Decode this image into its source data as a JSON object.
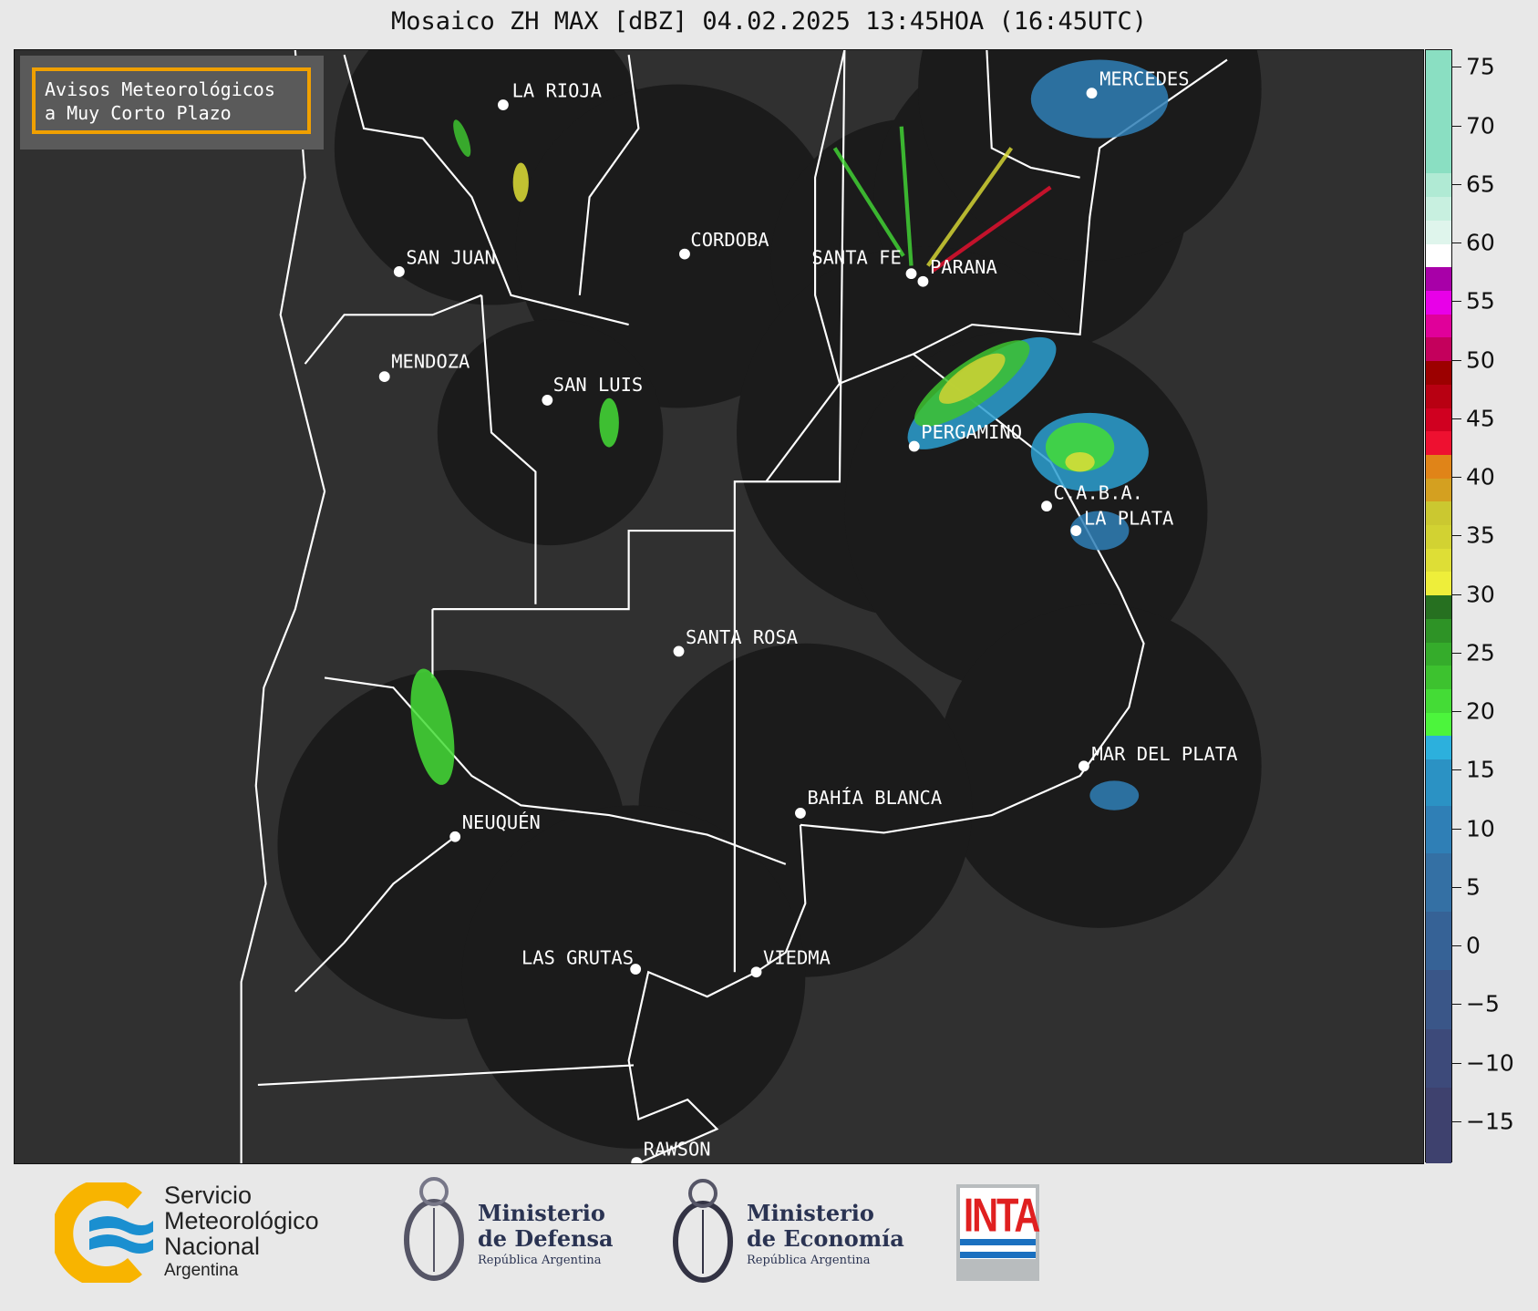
{
  "title": "Mosaico ZH MAX [dBZ] 04.02.2025 13:45HOA (16:45UTC)",
  "legend_box": {
    "line1": "Avisos Meteorológicos",
    "line2": "a Muy Corto Plazo",
    "border_color": "#f0a000"
  },
  "cities": [
    "LA RIOJA",
    "SAN JUAN",
    "CORDOBA",
    "SANTA FE",
    "PARANA",
    "MENDOZA",
    "SAN LUIS",
    "PERGAMINO",
    "MERCEDES",
    "C.A.B.A.",
    "LA PLATA",
    "SANTA ROSA",
    "MAR DEL PLATA",
    "BAHÍA BLANCA",
    "NEUQUÉN",
    "LAS GRUTAS",
    "VIEDMA",
    "RAWSON"
  ],
  "colorbar": {
    "unit": "dBZ",
    "range": [
      -18.5,
      76.5
    ],
    "ticks": [
      "75",
      "70",
      "65",
      "60",
      "55",
      "50",
      "45",
      "40",
      "35",
      "30",
      "25",
      "20",
      "15",
      "10",
      "5",
      "0",
      "−5",
      "−10",
      "−15"
    ],
    "tick_values": [
      75,
      70,
      65,
      60,
      55,
      50,
      45,
      40,
      35,
      30,
      25,
      20,
      15,
      10,
      5,
      0,
      -5,
      -10,
      -15
    ],
    "bands": [
      [
        -18.5,
        -12,
        "#3e416e"
      ],
      [
        -12,
        -7,
        "#3d4a7a"
      ],
      [
        -7,
        -2,
        "#3a5688"
      ],
      [
        -2,
        3,
        "#366296"
      ],
      [
        3,
        8,
        "#3470a4"
      ],
      [
        8,
        12,
        "#2f7fb6"
      ],
      [
        12,
        16,
        "#2b92c4"
      ],
      [
        16,
        18,
        "#2cb0dd"
      ],
      [
        18,
        20,
        "#4cf53c"
      ],
      [
        20,
        22,
        "#44dc36"
      ],
      [
        22,
        24,
        "#3dc22f"
      ],
      [
        24,
        26,
        "#35ac2b"
      ],
      [
        26,
        28,
        "#2e9326"
      ],
      [
        28,
        30,
        "#267020"
      ],
      [
        30,
        32,
        "#eeee3a"
      ],
      [
        32,
        34,
        "#dede36"
      ],
      [
        34,
        36,
        "#d2d232"
      ],
      [
        36,
        38,
        "#cbc830"
      ],
      [
        38,
        40,
        "#d4a020"
      ],
      [
        40,
        42,
        "#e08418"
      ],
      [
        42,
        44,
        "#ee1030"
      ],
      [
        44,
        46,
        "#d00020"
      ],
      [
        46,
        48,
        "#b80012"
      ],
      [
        48,
        50,
        "#9c0000"
      ],
      [
        50,
        52,
        "#c4005c"
      ],
      [
        52,
        54,
        "#e0009a"
      ],
      [
        54,
        56,
        "#e800e8"
      ],
      [
        56,
        58,
        "#a800a8"
      ],
      [
        58,
        60,
        "#ffffff"
      ],
      [
        60,
        62,
        "#dff5ec"
      ],
      [
        62,
        64,
        "#c8f0e0"
      ],
      [
        64,
        66,
        "#b0ead4"
      ],
      [
        66,
        76.5,
        "#8adfc2"
      ]
    ]
  },
  "footer": {
    "smn": {
      "l1": "Servicio",
      "l2": "Meteorológico",
      "l3": "Nacional",
      "l4": "Argentina"
    },
    "defensa": {
      "l1": "Ministerio",
      "l2": "de Defensa",
      "l3": "República Argentina"
    },
    "economia": {
      "l1": "Ministerio",
      "l2": "de Economía",
      "l3": "República Argentina"
    },
    "inta": "INTA"
  },
  "colors": {
    "map_bg": "#303030",
    "radar_coverage": "#1b1b1b",
    "borders": "#ffffff",
    "city_dot": "#ffffff"
  }
}
